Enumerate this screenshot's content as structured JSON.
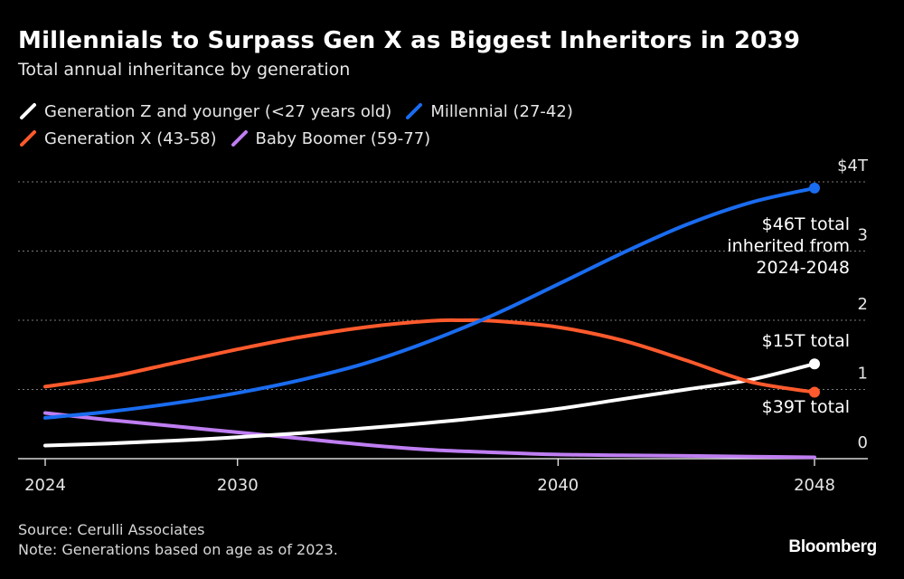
{
  "title": "Millennials to Surpass Gen X as Biggest Inheritors in 2039",
  "subtitle": "Total annual inheritance by generation",
  "source": "Source: Cerulli Associates",
  "note": "Note: Generations based on age as of 2023.",
  "logo": "Bloomberg",
  "legend": [
    {
      "label": "Generation Z and younger (<27 years old)",
      "color": "#ffffff"
    },
    {
      "label": "Millennial (27-42)",
      "color": "#1a6cf0"
    },
    {
      "label": "Generation X (43-58)",
      "color": "#ff5a2d"
    },
    {
      "label": "Baby Boomer (59-77)",
      "color": "#bf7ef2"
    }
  ],
  "chart_data": {
    "type": "line",
    "title": "Millennials to Surpass Gen X as Biggest Inheritors in 2039",
    "subtitle": "Total annual inheritance by generation",
    "xlim": [
      2024,
      2048
    ],
    "ylim": [
      0,
      4
    ],
    "x_ticks": [
      2024,
      2030,
      2040,
      2048
    ],
    "y_ticks": [
      {
        "value": 0,
        "label": "0"
      },
      {
        "value": 1,
        "label": "1"
      },
      {
        "value": 2,
        "label": "2"
      },
      {
        "value": 3,
        "label": "3"
      },
      {
        "value": 4,
        "label": "$4T"
      }
    ],
    "grid": "horizontal dotted",
    "series": [
      {
        "name": "Generation Z and younger (<27 years old)",
        "color": "#ffffff",
        "x": [
          2024,
          2026,
          2028,
          2030,
          2032,
          2034,
          2036,
          2038,
          2040,
          2042,
          2044,
          2046,
          2048
        ],
        "y": [
          0.19,
          0.22,
          0.26,
          0.31,
          0.37,
          0.44,
          0.52,
          0.61,
          0.72,
          0.86,
          1.0,
          1.14,
          1.37
        ],
        "end_label": "$15T total"
      },
      {
        "name": "Millennial (27-42)",
        "color": "#1a6cf0",
        "x": [
          2024,
          2026,
          2028,
          2030,
          2032,
          2034,
          2036,
          2038,
          2040,
          2042,
          2044,
          2046,
          2048
        ],
        "y": [
          0.59,
          0.68,
          0.8,
          0.95,
          1.14,
          1.38,
          1.7,
          2.08,
          2.52,
          2.97,
          3.38,
          3.7,
          3.91
        ],
        "end_label": "$46T total inherited from 2024-2048"
      },
      {
        "name": "Generation X (43-58)",
        "color": "#ff5a2d",
        "x": [
          2024,
          2026,
          2028,
          2030,
          2032,
          2034,
          2036,
          2037,
          2038,
          2040,
          2042,
          2044,
          2046,
          2048
        ],
        "y": [
          1.04,
          1.18,
          1.38,
          1.58,
          1.76,
          1.9,
          1.99,
          2.0,
          1.99,
          1.9,
          1.71,
          1.42,
          1.11,
          0.96
        ],
        "end_label": "$39T total"
      },
      {
        "name": "Baby Boomer (59-77)",
        "color": "#bf7ef2",
        "x": [
          2024,
          2026,
          2028,
          2030,
          2032,
          2034,
          2036,
          2038,
          2040,
          2042,
          2044,
          2046,
          2048
        ],
        "y": [
          0.66,
          0.56,
          0.47,
          0.38,
          0.29,
          0.2,
          0.13,
          0.09,
          0.06,
          0.05,
          0.04,
          0.03,
          0.02
        ]
      }
    ],
    "annotations": [
      {
        "text": "$46T total",
        "series": "Millennial (27-42)"
      },
      {
        "text": "inherited from",
        "series": "Millennial (27-42)"
      },
      {
        "text": "2024-2048",
        "series": "Millennial (27-42)"
      },
      {
        "text": "$15T total",
        "series": "Generation Z and younger (<27 years old)"
      },
      {
        "text": "$39T total",
        "series": "Generation X (43-58)"
      }
    ]
  }
}
